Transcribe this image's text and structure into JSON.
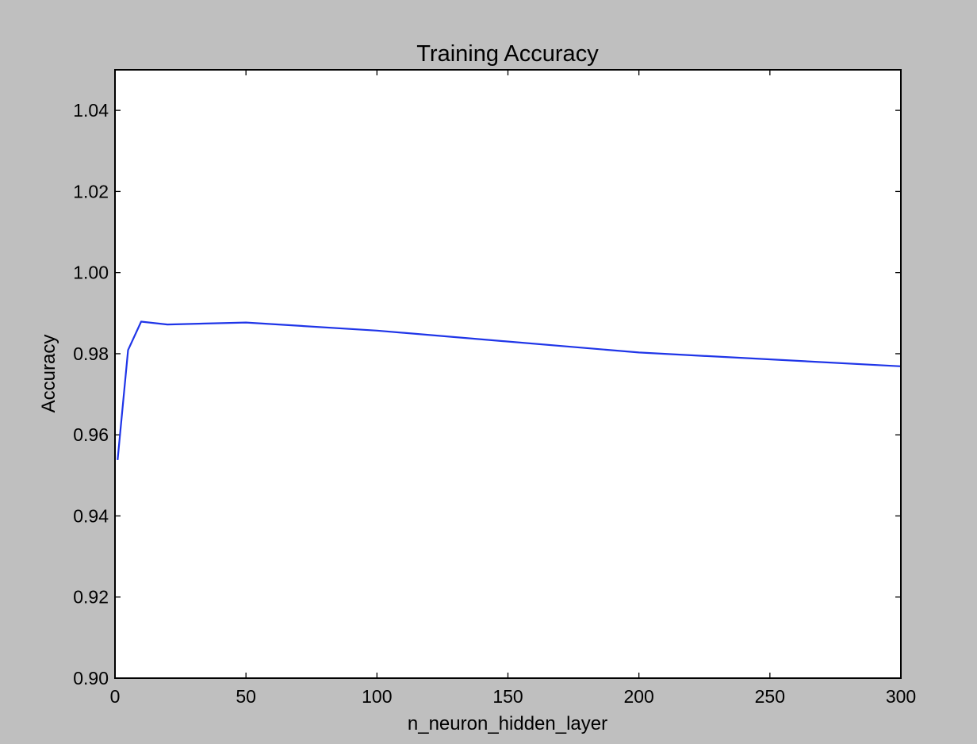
{
  "chart_data": {
    "type": "line",
    "title": "Training Accuracy",
    "xlabel": "n_neuron_hidden_layer",
    "ylabel": "Accuracy",
    "xlim": [
      0,
      300
    ],
    "ylim": [
      0.9,
      1.05
    ],
    "xticks": [
      0,
      50,
      100,
      150,
      200,
      250,
      300
    ],
    "yticks": [
      0.9,
      0.92,
      0.94,
      0.96,
      0.98,
      1.0,
      1.02,
      1.04
    ],
    "xtick_labels": [
      "0",
      "50",
      "100",
      "150",
      "200",
      "250",
      "300"
    ],
    "ytick_labels": [
      "0.90",
      "0.92",
      "0.94",
      "0.96",
      "0.98",
      "1.00",
      "1.02",
      "1.04"
    ],
    "grid": false,
    "series": [
      {
        "color": "#1f35e8",
        "x": [
          1,
          5,
          10,
          20,
          50,
          100,
          200,
          300
        ],
        "y": [
          0.9538,
          0.9809,
          0.9879,
          0.9872,
          0.9877,
          0.9857,
          0.9803,
          0.9769
        ]
      }
    ]
  }
}
